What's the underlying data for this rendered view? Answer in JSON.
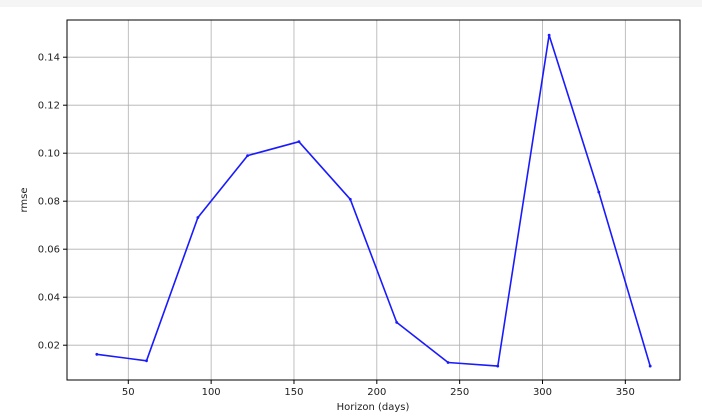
{
  "chart_data": {
    "type": "line",
    "title": "",
    "xlabel": "Horizon (days)",
    "ylabel": "rmse",
    "xlim": [
      13,
      383
    ],
    "ylim": [
      0.0055,
      0.1555
    ],
    "xticks": [
      50,
      100,
      150,
      200,
      250,
      300,
      350
    ],
    "yticks": [
      0.02,
      0.04,
      0.06,
      0.08,
      0.1,
      0.12,
      0.14
    ],
    "ytick_labels": [
      "0.02",
      "0.04",
      "0.06",
      "0.08",
      "0.10",
      "0.12",
      "0.14"
    ],
    "grid": true,
    "series": [
      {
        "color": "#1a1aff",
        "points": [
          {
            "x": 31,
            "y": 0.0162
          },
          {
            "x": 61,
            "y": 0.0135
          },
          {
            "x": 92,
            "y": 0.0732
          },
          {
            "x": 122,
            "y": 0.099
          },
          {
            "x": 153,
            "y": 0.1048
          },
          {
            "x": 184,
            "y": 0.0808
          },
          {
            "x": 212,
            "y": 0.0295
          },
          {
            "x": 243,
            "y": 0.0128
          },
          {
            "x": 273,
            "y": 0.0113
          },
          {
            "x": 304,
            "y": 0.1492
          },
          {
            "x": 334,
            "y": 0.0838
          },
          {
            "x": 365,
            "y": 0.0113
          }
        ]
      }
    ]
  }
}
